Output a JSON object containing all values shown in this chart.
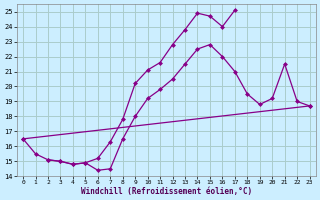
{
  "xlabel": "Windchill (Refroidissement éolien,°C)",
  "bg_color": "#cceeff",
  "grid_color": "#aacccc",
  "line_color": "#880088",
  "xlim_min": -0.5,
  "xlim_max": 23.5,
  "ylim_min": 14,
  "ylim_max": 25.5,
  "yticks": [
    14,
    15,
    16,
    17,
    18,
    19,
    20,
    21,
    22,
    23,
    24,
    25
  ],
  "xticks": [
    0,
    1,
    2,
    3,
    4,
    5,
    6,
    7,
    8,
    9,
    10,
    11,
    12,
    13,
    14,
    15,
    16,
    17,
    18,
    19,
    20,
    21,
    22,
    23
  ],
  "line1_x": [
    0,
    1,
    2,
    3,
    4,
    5,
    6,
    7,
    8,
    9,
    10,
    11,
    12,
    13,
    14,
    15,
    16,
    17
  ],
  "line1_y": [
    16.5,
    15.5,
    15.1,
    15.0,
    14.8,
    14.9,
    15.2,
    16.3,
    17.8,
    20.2,
    21.1,
    21.6,
    22.8,
    23.8,
    24.9,
    24.7,
    24.0,
    25.1
  ],
  "line2_x": [
    2,
    3,
    4,
    5,
    6,
    7,
    8,
    9,
    10,
    11,
    12,
    13,
    14,
    15,
    16,
    17,
    18,
    19,
    20,
    21,
    22,
    23
  ],
  "line2_y": [
    15.1,
    15.0,
    14.8,
    14.9,
    14.4,
    14.5,
    16.5,
    18.0,
    19.2,
    19.8,
    20.5,
    21.5,
    22.5,
    22.8,
    22.0,
    21.0,
    19.5,
    18.8,
    19.2,
    21.5,
    19.0,
    18.7
  ],
  "line3_x": [
    0,
    23
  ],
  "line3_y": [
    16.5,
    18.7
  ]
}
